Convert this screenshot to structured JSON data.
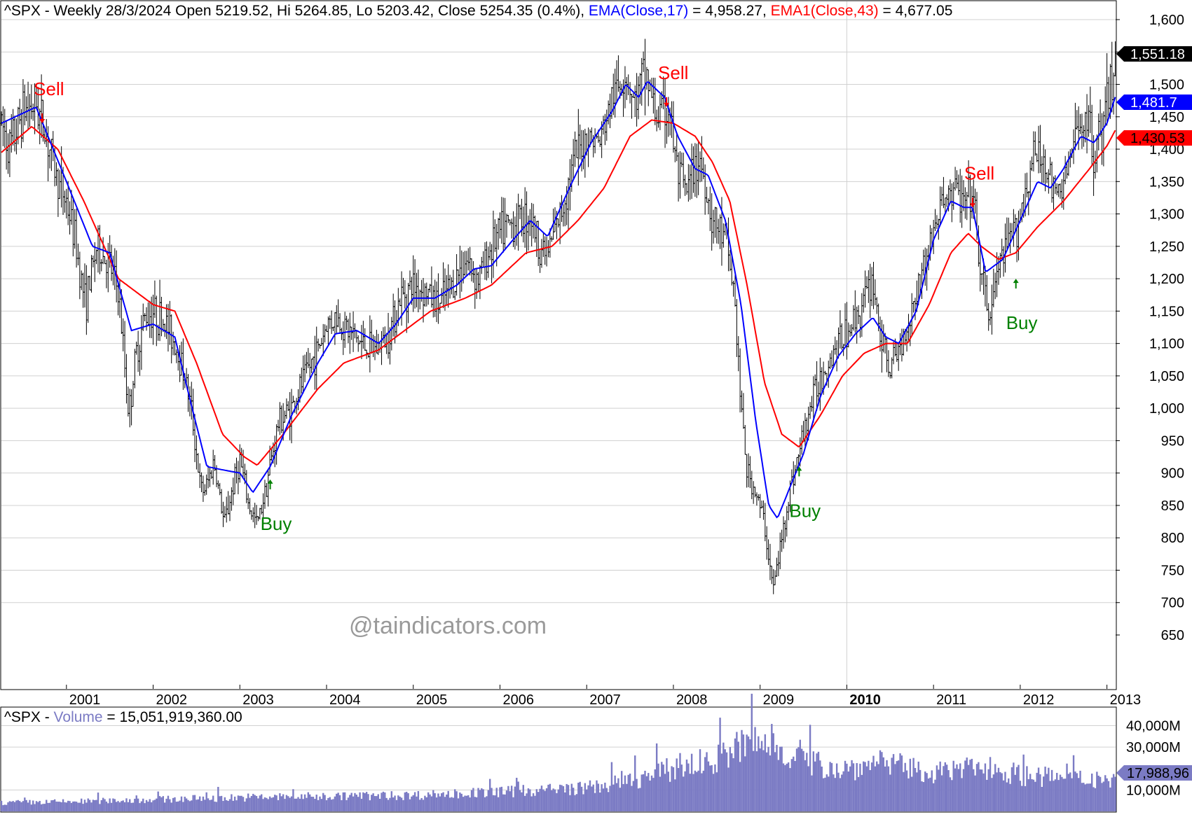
{
  "header": {
    "symbol": "^SPX",
    "timeframe": "Weekly",
    "date": "28/3/2024",
    "open_label": "Open",
    "open": "5219.52",
    "high_label": "Hi",
    "high": "5264.85",
    "low_label": "Lo",
    "low": "5203.42",
    "close_label": "Close",
    "close": "5254.35",
    "change": "(0.4%)",
    "ema17_label": "EMA(Close,17)",
    "ema17_value": "4,958.27",
    "ema43_label": "EMA1(Close,43)",
    "ema43_value": "4,677.05"
  },
  "volume_header": {
    "symbol": "^SPX",
    "label": "Volume",
    "value": "15,051,919,360.00"
  },
  "watermark": "@taindicators.com",
  "colors": {
    "price_bars": "#000000",
    "ema17": "#0000ff",
    "ema43": "#ff0000",
    "volume": "#7b7bc4",
    "sell": "#ff0000",
    "buy": "#008000",
    "grid": "#d0d0d0"
  },
  "price_axis_ticks": [
    "1,600",
    "1,550",
    "1,500",
    "1,450",
    "1,400",
    "1,350",
    "1,300",
    "1,250",
    "1,200",
    "1,150",
    "1,100",
    "1,050",
    "1,000",
    "950",
    "900",
    "850",
    "800",
    "750",
    "700",
    "650"
  ],
  "price_axis_values": [
    1600,
    1550,
    1500,
    1450,
    1400,
    1350,
    1300,
    1250,
    1200,
    1150,
    1100,
    1050,
    1000,
    950,
    900,
    850,
    800,
    750,
    700,
    650
  ],
  "price_badges": {
    "last": "1,551.18",
    "ema17": "1,481.7",
    "ema43": "1,430.53"
  },
  "volume_axis_ticks": [
    "40,000M",
    "30,000M",
    "10,000M"
  ],
  "volume_badge": "17,988,96",
  "x_axis_years": [
    "2001",
    "2002",
    "2003",
    "2004",
    "2005",
    "2006",
    "2007",
    "2008",
    "2009",
    "2010",
    "2011",
    "2012",
    "2013"
  ],
  "signals": [
    {
      "type": "sell",
      "label": "Sell",
      "date": 2000.72,
      "price": 1440
    },
    {
      "type": "buy",
      "label": "Buy",
      "date": 2003.35,
      "price": 890
    },
    {
      "type": "sell",
      "label": "Sell",
      "date": 2007.92,
      "price": 1465
    },
    {
      "type": "buy",
      "label": "Buy",
      "date": 2009.45,
      "price": 910
    },
    {
      "type": "sell",
      "label": "Sell",
      "date": 2011.45,
      "price": 1310
    },
    {
      "type": "buy",
      "label": "Buy",
      "date": 2011.95,
      "price": 1200
    }
  ],
  "chart_data": {
    "type": "line",
    "x_range": [
      2000.25,
      2013.1
    ],
    "ylim": [
      650,
      1620
    ],
    "volume_range_millions": [
      0,
      48000
    ],
    "price_anchors": [
      [
        2000.25,
        1440
      ],
      [
        2000.35,
        1400
      ],
      [
        2000.5,
        1460
      ],
      [
        2000.65,
        1470
      ],
      [
        2000.75,
        1430
      ],
      [
        2000.9,
        1350
      ],
      [
        2001.0,
        1320
      ],
      [
        2001.1,
        1260
      ],
      [
        2001.22,
        1160
      ],
      [
        2001.35,
        1250
      ],
      [
        2001.5,
        1220
      ],
      [
        2001.6,
        1180
      ],
      [
        2001.72,
        990
      ],
      [
        2001.8,
        1080
      ],
      [
        2001.9,
        1140
      ],
      [
        2002.0,
        1150
      ],
      [
        2002.15,
        1130
      ],
      [
        2002.25,
        1100
      ],
      [
        2002.35,
        1060
      ],
      [
        2002.45,
        990
      ],
      [
        2002.55,
        870
      ],
      [
        2002.62,
        880
      ],
      [
        2002.7,
        920
      ],
      [
        2002.82,
        820
      ],
      [
        2002.92,
        880
      ],
      [
        2003.0,
        920
      ],
      [
        2003.1,
        850
      ],
      [
        2003.2,
        820
      ],
      [
        2003.3,
        880
      ],
      [
        2003.45,
        980
      ],
      [
        2003.6,
        1000
      ],
      [
        2003.75,
        1050
      ],
      [
        2003.9,
        1090
      ],
      [
        2004.0,
        1130
      ],
      [
        2004.1,
        1140
      ],
      [
        2004.25,
        1120
      ],
      [
        2004.4,
        1100
      ],
      [
        2004.55,
        1090
      ],
      [
        2004.7,
        1110
      ],
      [
        2004.85,
        1170
      ],
      [
        2005.0,
        1190
      ],
      [
        2005.15,
        1180
      ],
      [
        2005.3,
        1160
      ],
      [
        2005.45,
        1190
      ],
      [
        2005.6,
        1230
      ],
      [
        2005.75,
        1200
      ],
      [
        2005.9,
        1250
      ],
      [
        2006.0,
        1270
      ],
      [
        2006.2,
        1290
      ],
      [
        2006.35,
        1300
      ],
      [
        2006.45,
        1250
      ],
      [
        2006.55,
        1240
      ],
      [
        2006.7,
        1300
      ],
      [
        2006.85,
        1380
      ],
      [
        2007.0,
        1420
      ],
      [
        2007.15,
        1410
      ],
      [
        2007.3,
        1480
      ],
      [
        2007.45,
        1520
      ],
      [
        2007.55,
        1470
      ],
      [
        2007.68,
        1520
      ],
      [
        2007.8,
        1450
      ],
      [
        2007.95,
        1460
      ],
      [
        2008.05,
        1360
      ],
      [
        2008.15,
        1330
      ],
      [
        2008.3,
        1390
      ],
      [
        2008.45,
        1290
      ],
      [
        2008.6,
        1260
      ],
      [
        2008.7,
        1180
      ],
      [
        2008.78,
        1000
      ],
      [
        2008.85,
        900
      ],
      [
        2008.95,
        870
      ],
      [
        2009.05,
        820
      ],
      [
        2009.15,
        720
      ],
      [
        2009.25,
        800
      ],
      [
        2009.35,
        880
      ],
      [
        2009.45,
        930
      ],
      [
        2009.55,
        990
      ],
      [
        2009.7,
        1050
      ],
      [
        2009.85,
        1090
      ],
      [
        2010.0,
        1120
      ],
      [
        2010.15,
        1150
      ],
      [
        2010.3,
        1200
      ],
      [
        2010.4,
        1100
      ],
      [
        2010.5,
        1060
      ],
      [
        2010.6,
        1090
      ],
      [
        2010.7,
        1130
      ],
      [
        2010.8,
        1180
      ],
      [
        2010.95,
        1250
      ],
      [
        2011.1,
        1320
      ],
      [
        2011.25,
        1340
      ],
      [
        2011.35,
        1310
      ],
      [
        2011.45,
        1330
      ],
      [
        2011.55,
        1200
      ],
      [
        2011.65,
        1140
      ],
      [
        2011.75,
        1220
      ],
      [
        2011.9,
        1260
      ],
      [
        2012.0,
        1300
      ],
      [
        2012.15,
        1390
      ],
      [
        2012.3,
        1380
      ],
      [
        2012.4,
        1320
      ],
      [
        2012.5,
        1350
      ],
      [
        2012.65,
        1420
      ],
      [
        2012.75,
        1460
      ],
      [
        2012.85,
        1400
      ],
      [
        2012.95,
        1430
      ],
      [
        2013.05,
        1500
      ],
      [
        2013.1,
        1551
      ]
    ],
    "ema17_anchors": [
      [
        2000.25,
        1440
      ],
      [
        2000.65,
        1465
      ],
      [
        2001.0,
        1350
      ],
      [
        2001.3,
        1250
      ],
      [
        2001.5,
        1240
      ],
      [
        2001.75,
        1120
      ],
      [
        2002.0,
        1130
      ],
      [
        2002.25,
        1110
      ],
      [
        2002.45,
        1000
      ],
      [
        2002.62,
        910
      ],
      [
        2002.8,
        905
      ],
      [
        2003.0,
        900
      ],
      [
        2003.15,
        870
      ],
      [
        2003.35,
        910
      ],
      [
        2003.6,
        990
      ],
      [
        2003.9,
        1070
      ],
      [
        2004.1,
        1115
      ],
      [
        2004.35,
        1120
      ],
      [
        2004.6,
        1100
      ],
      [
        2004.8,
        1130
      ],
      [
        2005.0,
        1170
      ],
      [
        2005.25,
        1170
      ],
      [
        2005.5,
        1190
      ],
      [
        2005.7,
        1215
      ],
      [
        2005.9,
        1220
      ],
      [
        2006.15,
        1260
      ],
      [
        2006.35,
        1290
      ],
      [
        2006.55,
        1265
      ],
      [
        2006.8,
        1340
      ],
      [
        2007.05,
        1410
      ],
      [
        2007.3,
        1460
      ],
      [
        2007.45,
        1500
      ],
      [
        2007.6,
        1480
      ],
      [
        2007.7,
        1505
      ],
      [
        2007.9,
        1480
      ],
      [
        2008.05,
        1420
      ],
      [
        2008.25,
        1370
      ],
      [
        2008.4,
        1360
      ],
      [
        2008.6,
        1290
      ],
      [
        2008.78,
        1160
      ],
      [
        2008.95,
        980
      ],
      [
        2009.1,
        850
      ],
      [
        2009.2,
        830
      ],
      [
        2009.35,
        880
      ],
      [
        2009.5,
        930
      ],
      [
        2009.7,
        1020
      ],
      [
        2009.9,
        1080
      ],
      [
        2010.1,
        1115
      ],
      [
        2010.3,
        1140
      ],
      [
        2010.45,
        1110
      ],
      [
        2010.6,
        1100
      ],
      [
        2010.8,
        1150
      ],
      [
        2011.0,
        1260
      ],
      [
        2011.2,
        1320
      ],
      [
        2011.35,
        1310
      ],
      [
        2011.45,
        1310
      ],
      [
        2011.6,
        1210
      ],
      [
        2011.8,
        1230
      ],
      [
        2012.0,
        1290
      ],
      [
        2012.2,
        1350
      ],
      [
        2012.35,
        1340
      ],
      [
        2012.5,
        1370
      ],
      [
        2012.7,
        1420
      ],
      [
        2012.85,
        1410
      ],
      [
        2013.0,
        1440
      ],
      [
        2013.1,
        1482
      ]
    ],
    "ema43_anchors": [
      [
        2000.25,
        1395
      ],
      [
        2000.6,
        1435
      ],
      [
        2000.9,
        1400
      ],
      [
        2001.2,
        1320
      ],
      [
        2001.6,
        1200
      ],
      [
        2002.0,
        1160
      ],
      [
        2002.25,
        1150
      ],
      [
        2002.5,
        1070
      ],
      [
        2002.8,
        960
      ],
      [
        2003.05,
        925
      ],
      [
        2003.2,
        912
      ],
      [
        2003.5,
        960
      ],
      [
        2003.9,
        1030
      ],
      [
        2004.2,
        1070
      ],
      [
        2004.6,
        1090
      ],
      [
        2004.9,
        1120
      ],
      [
        2005.2,
        1150
      ],
      [
        2005.6,
        1170
      ],
      [
        2005.9,
        1190
      ],
      [
        2006.3,
        1240
      ],
      [
        2006.6,
        1250
      ],
      [
        2006.9,
        1290
      ],
      [
        2007.2,
        1340
      ],
      [
        2007.5,
        1420
      ],
      [
        2007.75,
        1445
      ],
      [
        2008.0,
        1440
      ],
      [
        2008.25,
        1420
      ],
      [
        2008.45,
        1380
      ],
      [
        2008.65,
        1320
      ],
      [
        2008.85,
        1190
      ],
      [
        2009.05,
        1040
      ],
      [
        2009.25,
        960
      ],
      [
        2009.45,
        940
      ],
      [
        2009.7,
        990
      ],
      [
        2009.95,
        1050
      ],
      [
        2010.2,
        1085
      ],
      [
        2010.45,
        1100
      ],
      [
        2010.7,
        1100
      ],
      [
        2010.95,
        1160
      ],
      [
        2011.2,
        1240
      ],
      [
        2011.4,
        1270
      ],
      [
        2011.55,
        1250
      ],
      [
        2011.75,
        1230
      ],
      [
        2011.95,
        1240
      ],
      [
        2012.2,
        1280
      ],
      [
        2012.5,
        1320
      ],
      [
        2012.8,
        1370
      ],
      [
        2013.0,
        1405
      ],
      [
        2013.1,
        1430
      ]
    ],
    "volume_anchors_millions": [
      [
        2000.25,
        4000
      ],
      [
        2001.0,
        4500
      ],
      [
        2002.0,
        5500
      ],
      [
        2003.0,
        6500
      ],
      [
        2004.0,
        7000
      ],
      [
        2005.0,
        7500
      ],
      [
        2006.0,
        9000
      ],
      [
        2007.0,
        11000
      ],
      [
        2007.5,
        14000
      ],
      [
        2008.0,
        20000
      ],
      [
        2008.5,
        24000
      ],
      [
        2008.85,
        32000
      ],
      [
        2009.2,
        30000
      ],
      [
        2009.6,
        22000
      ],
      [
        2010.0,
        20000
      ],
      [
        2010.4,
        23000
      ],
      [
        2010.8,
        19000
      ],
      [
        2011.2,
        18000
      ],
      [
        2011.6,
        21000
      ],
      [
        2012.0,
        17000
      ],
      [
        2012.5,
        15000
      ],
      [
        2013.1,
        15000
      ]
    ]
  }
}
